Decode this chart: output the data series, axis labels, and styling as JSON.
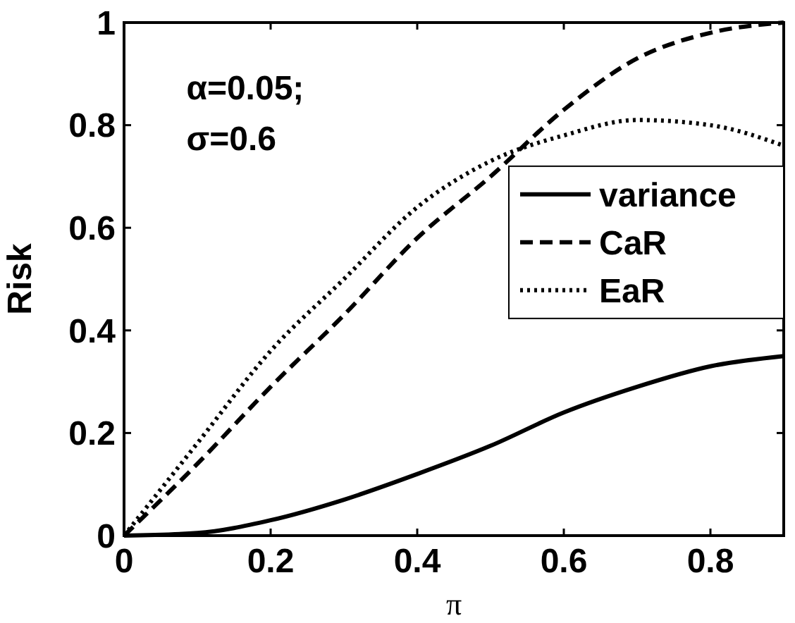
{
  "chart_data": {
    "type": "line",
    "xlabel": "π",
    "ylabel": "Risk",
    "x": [
      0,
      0.1,
      0.2,
      0.3,
      0.4,
      0.5,
      0.6,
      0.7,
      0.8,
      0.9
    ],
    "series": [
      {
        "name": "variance",
        "color": "#000000",
        "line_style": "solid",
        "values": [
          0,
          0.005,
          0.03,
          0.07,
          0.12,
          0.175,
          0.24,
          0.29,
          0.33,
          0.35
        ]
      },
      {
        "name": "CaR",
        "color": "#000000",
        "line_style": "dashed",
        "values": [
          0,
          0.14,
          0.29,
          0.43,
          0.58,
          0.7,
          0.83,
          0.93,
          0.98,
          1.0
        ]
      },
      {
        "name": "EaR",
        "color": "#000000",
        "line_style": "dotted",
        "values": [
          0,
          0.18,
          0.36,
          0.5,
          0.64,
          0.73,
          0.78,
          0.81,
          0.8,
          0.76
        ]
      }
    ],
    "xlim": [
      0,
      0.9
    ],
    "xticks": [
      0,
      0.2,
      0.4,
      0.6,
      0.8
    ],
    "ylim": [
      0,
      1
    ],
    "yticks": [
      0,
      0.2,
      0.4,
      0.6,
      0.8,
      1
    ],
    "grid": false,
    "legend": "right",
    "marker": "none",
    "annotations": [
      "α=0.05;",
      "σ=0.6"
    ]
  }
}
